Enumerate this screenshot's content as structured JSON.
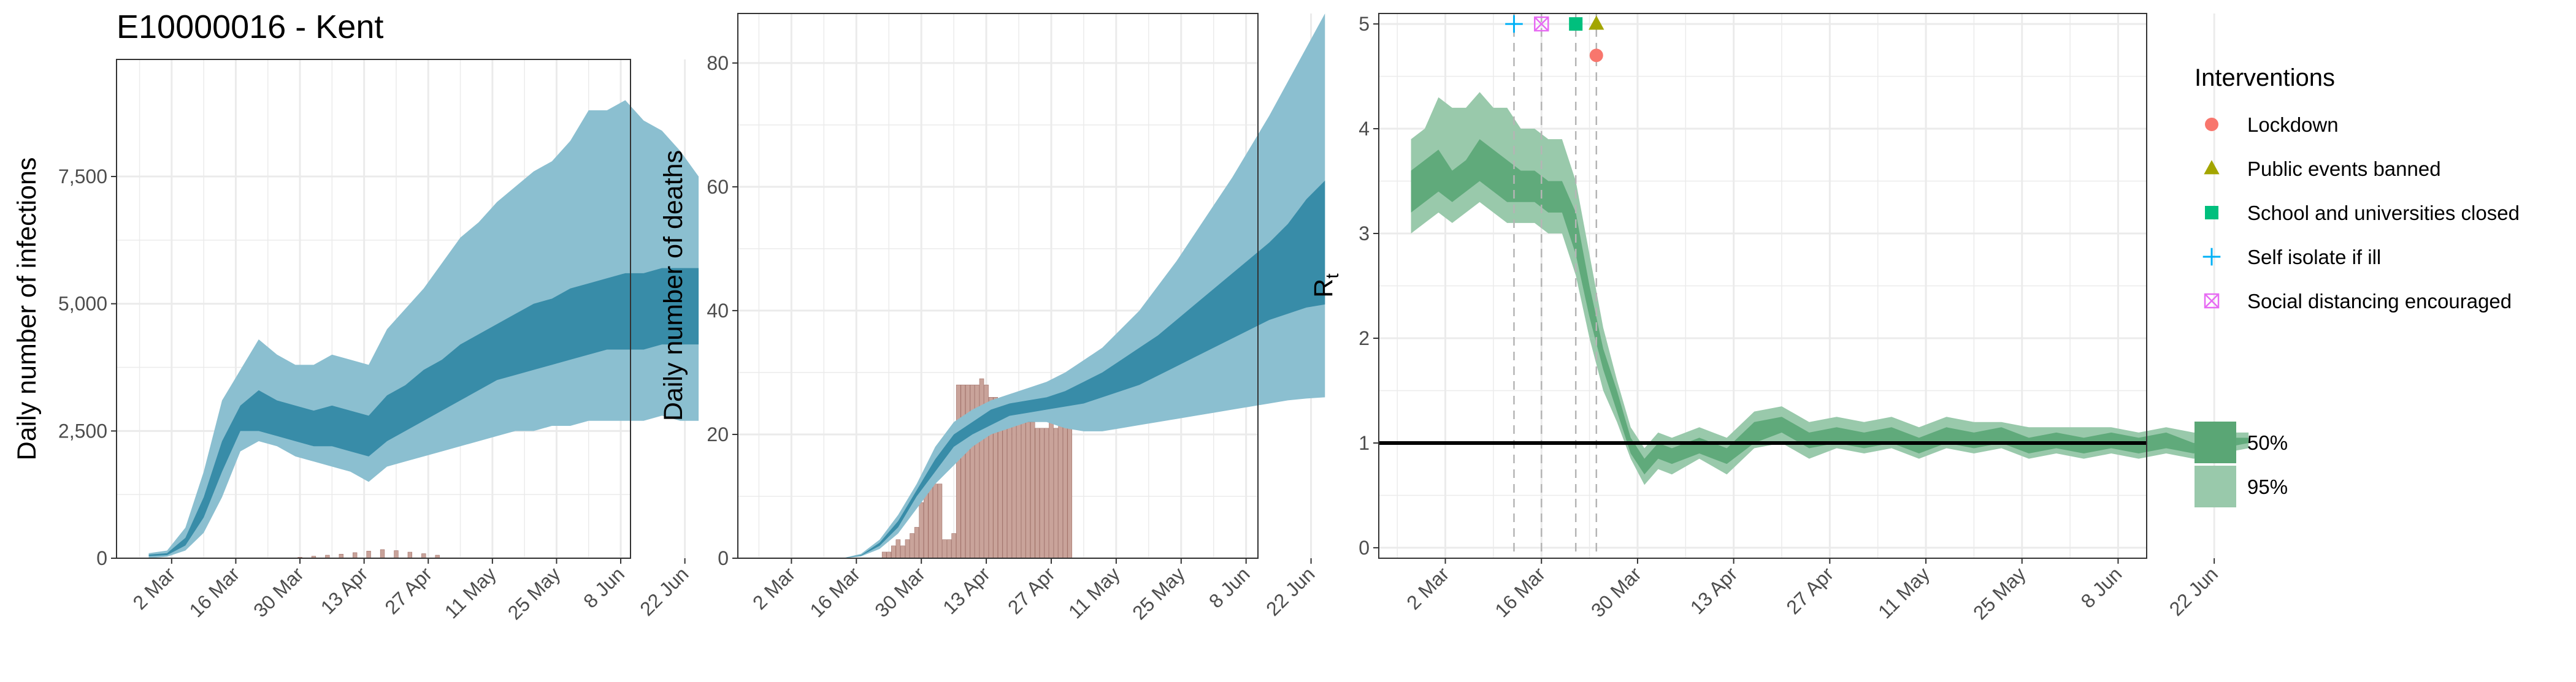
{
  "title": "E10000016 - Kent",
  "colors": {
    "ci95_blue": "#8bbfd0",
    "ci50_blue": "#2f86a3",
    "bars": "#c9a39a",
    "bar_outline": "#a07068",
    "rt95": "#99c9ab",
    "rt50": "#5aa675",
    "grid": "#ebebeb",
    "vline": "#b5b5b5"
  },
  "legend": {
    "interventions_title": "Interventions",
    "interventions": [
      {
        "label": "Lockdown",
        "shape": "circle",
        "color": "#f8766d"
      },
      {
        "label": "Public events banned",
        "shape": "triangle",
        "color": "#a3a500"
      },
      {
        "label": "School and universities closed",
        "shape": "square",
        "color": "#00bf7d"
      },
      {
        "label": "Self isolate if ill",
        "shape": "plus",
        "color": "#00b0f6"
      },
      {
        "label": "Social distancing encouraged",
        "shape": "boxed-x",
        "color": "#e76bf3"
      }
    ],
    "ci": [
      {
        "label": "50%",
        "color": "#5aa675"
      },
      {
        "label": "95%",
        "color": "#99c9ab"
      }
    ]
  },
  "chart_data": [
    {
      "type": "area",
      "panel": "infections",
      "ylabel": "Daily number of infections",
      "xlabel": "",
      "x_ticks": [
        "2 Mar",
        "16 Mar",
        "30 Mar",
        "13 Apr",
        "27 Apr",
        "11 May",
        "25 May",
        "8 Jun",
        "22 Jun"
      ],
      "y_ticks": [
        "0",
        "2,500",
        "5,000",
        "7,500"
      ],
      "ylim": [
        0,
        9800
      ],
      "x_start": "2020-02-22",
      "x_dates": [
        "2020-02-26",
        "2020-03-01",
        "2020-03-05",
        "2020-03-09",
        "2020-03-13",
        "2020-03-17",
        "2020-03-21",
        "2020-03-25",
        "2020-03-29",
        "2020-04-02",
        "2020-04-06",
        "2020-04-10",
        "2020-04-14",
        "2020-04-18",
        "2020-04-22",
        "2020-04-26",
        "2020-04-30",
        "2020-05-04",
        "2020-05-08",
        "2020-05-12",
        "2020-05-16",
        "2020-05-20",
        "2020-05-24",
        "2020-05-28",
        "2020-06-01",
        "2020-06-05",
        "2020-06-09",
        "2020-06-13",
        "2020-06-17",
        "2020-06-21",
        "2020-06-25"
      ],
      "ci95_low": [
        0,
        30,
        150,
        500,
        1200,
        2100,
        2300,
        2200,
        2000,
        1900,
        1800,
        1700,
        1500,
        1800,
        1900,
        2000,
        2100,
        2200,
        2300,
        2400,
        2500,
        2500,
        2600,
        2600,
        2700,
        2700,
        2700,
        2700,
        2800,
        2700,
        2700
      ],
      "ci50_low": [
        40,
        60,
        250,
        800,
        1700,
        2500,
        2500,
        2400,
        2300,
        2200,
        2200,
        2100,
        2000,
        2300,
        2500,
        2700,
        2900,
        3100,
        3300,
        3500,
        3600,
        3700,
        3800,
        3900,
        4000,
        4100,
        4100,
        4100,
        4200,
        4200,
        4200
      ],
      "ci50_high": [
        70,
        100,
        400,
        1200,
        2300,
        3000,
        3300,
        3100,
        3000,
        2900,
        3000,
        2900,
        2800,
        3200,
        3400,
        3700,
        3900,
        4200,
        4400,
        4600,
        4800,
        5000,
        5100,
        5300,
        5400,
        5500,
        5600,
        5600,
        5700,
        5700,
        5700
      ],
      "ci95_high": [
        100,
        150,
        600,
        1700,
        3100,
        3700,
        4300,
        4000,
        3800,
        3800,
        4000,
        3900,
        3800,
        4500,
        4900,
        5300,
        5800,
        6300,
        6600,
        7000,
        7300,
        7600,
        7800,
        8200,
        8800,
        8800,
        9000,
        8600,
        8400,
        8000,
        7500
      ],
      "bars_dates": [
        "2020-03-30",
        "2020-04-02",
        "2020-04-05",
        "2020-04-08",
        "2020-04-11",
        "2020-04-14",
        "2020-04-17",
        "2020-04-20",
        "2020-04-23",
        "2020-04-26",
        "2020-04-29"
      ],
      "bars_values": [
        20,
        40,
        60,
        80,
        110,
        140,
        170,
        150,
        120,
        90,
        60
      ]
    },
    {
      "type": "area",
      "panel": "deaths",
      "ylabel": "Daily number of deaths",
      "xlabel": "",
      "x_ticks": [
        "2 Mar",
        "16 Mar",
        "30 Mar",
        "13 Apr",
        "27 Apr",
        "11 May",
        "25 May",
        "8 Jun",
        "22 Jun"
      ],
      "y_ticks": [
        "0",
        "20",
        "40",
        "60",
        "80"
      ],
      "ylim": [
        0,
        88
      ],
      "x_start": "2020-02-22",
      "x_dates": [
        "2020-02-26",
        "2020-03-05",
        "2020-03-13",
        "2020-03-17",
        "2020-03-21",
        "2020-03-25",
        "2020-03-29",
        "2020-04-02",
        "2020-04-06",
        "2020-04-10",
        "2020-04-14",
        "2020-04-18",
        "2020-04-22",
        "2020-04-26",
        "2020-04-30",
        "2020-05-04",
        "2020-05-08",
        "2020-05-12",
        "2020-05-16",
        "2020-05-20",
        "2020-05-24",
        "2020-05-28",
        "2020-06-01",
        "2020-06-05",
        "2020-06-09",
        "2020-06-13",
        "2020-06-17",
        "2020-06-21",
        "2020-06-25"
      ],
      "ci95_low": [
        0,
        0,
        0,
        0.3,
        1.5,
        4,
        8,
        12,
        15,
        18,
        20,
        21,
        22,
        22,
        21,
        20.5,
        20.5,
        21,
        21.5,
        22,
        22.5,
        23,
        23.5,
        24,
        24.5,
        25,
        25.5,
        25.8,
        26
      ],
      "ci50_low": [
        0,
        0,
        0,
        0.4,
        2,
        5,
        10,
        14,
        18,
        20,
        21.5,
        23,
        23.5,
        24,
        24.5,
        25,
        26,
        27,
        28,
        29.5,
        31,
        32.5,
        34,
        35.5,
        37,
        38.5,
        39.5,
        40.5,
        41
      ],
      "ci50_high": [
        0,
        0,
        0,
        0.5,
        2.5,
        6,
        11,
        16,
        20,
        22,
        24,
        25,
        25.5,
        26,
        27,
        28.5,
        30,
        32,
        34,
        36,
        38.5,
        41,
        43.5,
        46,
        48.5,
        51,
        54,
        58,
        61
      ],
      "ci95_high": [
        0,
        0,
        0,
        0.7,
        3,
        7,
        12,
        18,
        22,
        24,
        25.5,
        26.5,
        27.5,
        28.5,
        30,
        32,
        34,
        37,
        40,
        44,
        48,
        52.5,
        57,
        61.5,
        66.5,
        71.5,
        77,
        82.5,
        88
      ],
      "bars_dates": [
        "2020-03-22",
        "2020-03-23",
        "2020-03-24",
        "2020-03-25",
        "2020-03-26",
        "2020-03-27",
        "2020-03-28",
        "2020-03-29",
        "2020-03-30",
        "2020-03-31",
        "2020-04-01",
        "2020-04-02",
        "2020-04-03",
        "2020-04-04",
        "2020-04-05",
        "2020-04-06",
        "2020-04-07",
        "2020-04-08",
        "2020-04-09",
        "2020-04-10",
        "2020-04-11",
        "2020-04-12",
        "2020-04-13",
        "2020-04-14",
        "2020-04-15",
        "2020-04-16",
        "2020-04-17",
        "2020-04-18",
        "2020-04-19",
        "2020-04-20",
        "2020-04-21",
        "2020-04-22",
        "2020-04-23",
        "2020-04-24",
        "2020-04-25",
        "2020-04-26",
        "2020-04-27",
        "2020-04-28",
        "2020-04-29",
        "2020-04-30",
        "2020-05-01"
      ],
      "bars_values": [
        1,
        1,
        2,
        3,
        2,
        3,
        4,
        5,
        9,
        12,
        12,
        12,
        12,
        3,
        3,
        4,
        28,
        28,
        28,
        28,
        28,
        29,
        28,
        26,
        26,
        25,
        25,
        25,
        25,
        24,
        23,
        22,
        22,
        21,
        21,
        21,
        22,
        21,
        22,
        22,
        22
      ]
    },
    {
      "type": "area",
      "panel": "rt",
      "ylabel": "Rt",
      "xlabel": "",
      "x_ticks": [
        "2 Mar",
        "16 Mar",
        "30 Mar",
        "13 Apr",
        "27 Apr",
        "11 May",
        "25 May",
        "8 Jun",
        "22 Jun"
      ],
      "y_ticks": [
        "0",
        "1",
        "2",
        "3",
        "4",
        "5"
      ],
      "ylim": [
        -0.1,
        5.1
      ],
      "x_start": "2020-02-22",
      "x_dates": [
        "2020-02-26",
        "2020-02-28",
        "2020-03-01",
        "2020-03-03",
        "2020-03-05",
        "2020-03-07",
        "2020-03-09",
        "2020-03-11",
        "2020-03-13",
        "2020-03-15",
        "2020-03-17",
        "2020-03-19",
        "2020-03-21",
        "2020-03-23",
        "2020-03-25",
        "2020-03-27",
        "2020-03-29",
        "2020-03-31",
        "2020-04-02",
        "2020-04-04",
        "2020-04-08",
        "2020-04-12",
        "2020-04-16",
        "2020-04-20",
        "2020-04-24",
        "2020-04-28",
        "2020-05-02",
        "2020-05-06",
        "2020-05-10",
        "2020-05-14",
        "2020-05-18",
        "2020-05-22",
        "2020-05-26",
        "2020-05-30",
        "2020-06-03",
        "2020-06-07",
        "2020-06-11",
        "2020-06-15",
        "2020-06-19",
        "2020-06-23",
        "2020-06-27"
      ],
      "ci95_low": [
        3.0,
        3.1,
        3.2,
        3.1,
        3.2,
        3.3,
        3.2,
        3.1,
        3.1,
        3.1,
        3.0,
        3.0,
        2.6,
        2.0,
        1.5,
        1.2,
        0.85,
        0.6,
        0.75,
        0.7,
        0.85,
        0.7,
        0.95,
        1.0,
        0.85,
        0.95,
        0.9,
        0.95,
        0.85,
        0.95,
        0.9,
        0.95,
        0.85,
        0.9,
        0.85,
        0.9,
        0.85,
        0.9,
        0.85,
        0.9,
        0.95
      ],
      "ci50_low": [
        3.2,
        3.3,
        3.4,
        3.3,
        3.4,
        3.5,
        3.4,
        3.3,
        3.3,
        3.3,
        3.2,
        3.2,
        2.8,
        2.2,
        1.7,
        1.3,
        0.9,
        0.7,
        0.85,
        0.8,
        0.9,
        0.8,
        1.0,
        1.1,
        0.95,
        1.0,
        0.95,
        1.0,
        0.9,
        1.0,
        0.95,
        1.0,
        0.9,
        0.95,
        0.9,
        0.95,
        0.9,
        0.95,
        0.9,
        0.95,
        1.0
      ],
      "ci50_high": [
        3.6,
        3.7,
        3.8,
        3.6,
        3.7,
        3.9,
        3.8,
        3.7,
        3.6,
        3.6,
        3.5,
        3.5,
        3.2,
        2.5,
        1.9,
        1.5,
        1.05,
        0.85,
        1.0,
        0.95,
        1.05,
        0.95,
        1.2,
        1.25,
        1.1,
        1.15,
        1.1,
        1.15,
        1.05,
        1.15,
        1.1,
        1.15,
        1.05,
        1.1,
        1.05,
        1.1,
        1.05,
        1.1,
        1.0,
        1.05,
        1.05
      ],
      "ci95_high": [
        3.9,
        4.0,
        4.3,
        4.2,
        4.2,
        4.35,
        4.2,
        4.2,
        4.0,
        4.0,
        3.9,
        3.9,
        3.5,
        2.8,
        2.1,
        1.6,
        1.15,
        0.95,
        1.1,
        1.05,
        1.15,
        1.05,
        1.3,
        1.35,
        1.2,
        1.25,
        1.2,
        1.25,
        1.15,
        1.25,
        1.2,
        1.2,
        1.15,
        1.15,
        1.15,
        1.15,
        1.1,
        1.15,
        1.1,
        1.1,
        1.1
      ],
      "reference_line": 1,
      "interventions": [
        {
          "label": "Self isolate if ill",
          "date": "2020-03-12",
          "y": 5.0
        },
        {
          "label": "Social distancing encouraged",
          "date": "2020-03-16",
          "y": 5.0
        },
        {
          "label": "School and universities closed",
          "date": "2020-03-21",
          "y": 5.0
        },
        {
          "label": "Public events banned",
          "date": "2020-03-24",
          "y": 5.0
        },
        {
          "label": "Lockdown",
          "date": "2020-03-24",
          "y": 4.7
        }
      ]
    }
  ]
}
